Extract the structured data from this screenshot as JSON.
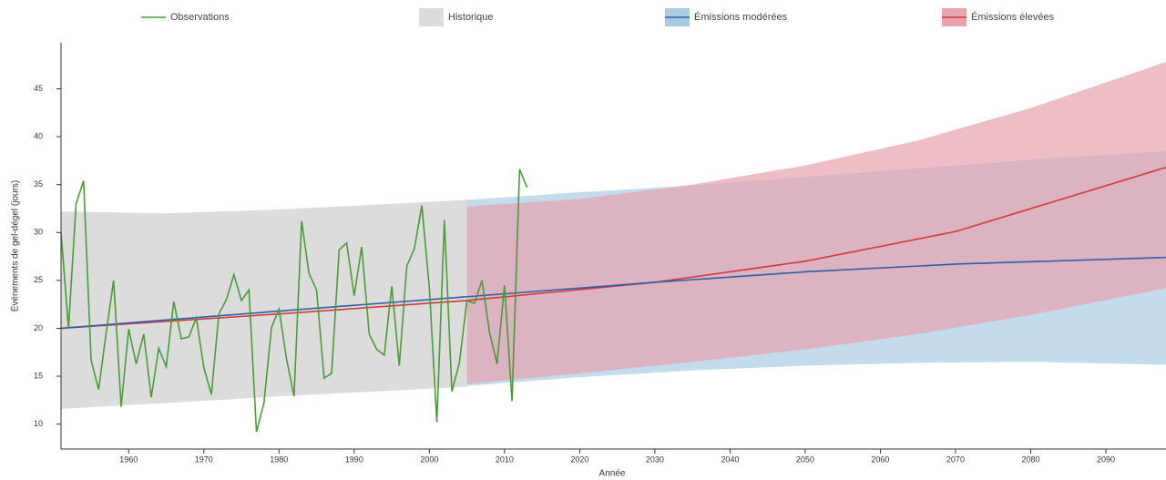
{
  "chart_data": {
    "type": "line",
    "x_label": "Année",
    "y_label": "Événements de gel-dégel (jours)",
    "xlim": [
      1951,
      2098
    ],
    "ylim": [
      7.4,
      49.8
    ],
    "xticks": [
      1960,
      1970,
      1980,
      1990,
      2000,
      2010,
      2020,
      2030,
      2040,
      2050,
      2060,
      2070,
      2080,
      2090
    ],
    "yticks": [
      10,
      15,
      20,
      25,
      30,
      35,
      40,
      45
    ],
    "legend": "top",
    "series": [
      {
        "name": "Observations",
        "color": "#4a9a3a",
        "x": [
          1951,
          1952,
          1953,
          1954,
          1955,
          1956,
          1957,
          1958,
          1959,
          1960,
          1961,
          1962,
          1963,
          1964,
          1965,
          1966,
          1967,
          1968,
          1969,
          1970,
          1971,
          1972,
          1973,
          1974,
          1975,
          1976,
          1977,
          1978,
          1979,
          1980,
          1981,
          1982,
          1983,
          1984,
          1985,
          1986,
          1987,
          1988,
          1989,
          1990,
          1991,
          1992,
          1993,
          1994,
          1995,
          1996,
          1997,
          1998,
          1999,
          2000,
          2001,
          2002,
          2003,
          2004,
          2005,
          2006,
          2007,
          2008,
          2009,
          2010,
          2011,
          2012,
          2013
        ],
        "values": [
          30,
          20,
          33,
          35.4,
          16.7,
          13.6,
          19.5,
          25,
          11.8,
          19.9,
          16.3,
          19.4,
          12.8,
          17.9,
          16,
          22.8,
          18.9,
          19.1,
          21.1,
          15.9,
          13.1,
          21.5,
          23,
          25.6,
          22.9,
          24,
          9.2,
          12.2,
          20.1,
          22,
          16.8,
          12.9,
          31.2,
          25.7,
          24,
          14.8,
          15.3,
          28.2,
          28.9,
          23.4,
          28.5,
          19.4,
          17.8,
          17.2,
          24.4,
          16.1,
          26.5,
          28.3,
          32.8,
          24.2,
          10.2,
          31.3,
          13.4,
          16.4,
          22.9,
          22.6,
          25,
          19.6,
          16.3,
          24.5,
          12.4,
          36.6,
          34.7
        ]
      },
      {
        "name": "Historique",
        "band_color": "#dcdcdc",
        "band_x": [
          1951,
          1965,
          1980,
          1995,
          2005
        ],
        "lower": [
          11.6,
          12.2,
          12.9,
          13.5,
          13.9
        ],
        "upper": [
          32.2,
          32.0,
          32.4,
          33.0,
          33.4
        ]
      },
      {
        "name": "Émissions modérées",
        "color": "#2f5fa6",
        "band_color": "#a9cce2",
        "band_x": [
          2005,
          2020,
          2035,
          2050,
          2065,
          2080,
          2098
        ],
        "lower": [
          14.0,
          14.9,
          15.6,
          16.1,
          16.4,
          16.5,
          16.2
        ],
        "upper": [
          33.4,
          34.2,
          34.9,
          35.8,
          36.7,
          37.6,
          38.5
        ],
        "x": [
          1951,
          1980,
          2005,
          2030,
          2050,
          2070,
          2098
        ],
        "values": [
          20,
          21.8,
          23.3,
          24.8,
          25.9,
          26.7,
          27.4
        ]
      },
      {
        "name": "Émissions élevées",
        "color": "#d43a3a",
        "band_color": "#e7a3ae",
        "band_x": [
          2005,
          2020,
          2035,
          2050,
          2065,
          2080,
          2098
        ],
        "lower": [
          14.2,
          15.3,
          16.5,
          17.8,
          19.4,
          21.4,
          24.2
        ],
        "upper": [
          32.7,
          33.5,
          35.0,
          37.0,
          39.6,
          43.0,
          47.8
        ],
        "x": [
          1951,
          1980,
          2005,
          2030,
          2050,
          2070,
          2098
        ],
        "values": [
          20,
          21.5,
          22.9,
          24.8,
          27.0,
          30.1,
          36.8
        ]
      }
    ]
  }
}
